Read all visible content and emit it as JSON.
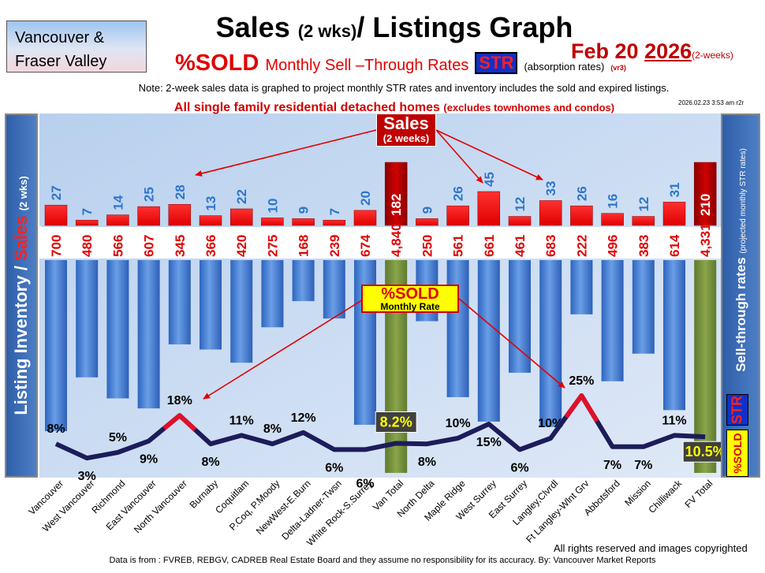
{
  "header": {
    "region_line1": "Vancouver &",
    "region_line2": "Fraser Valley",
    "title_main": "Sales",
    "title_small": "(2 wks)",
    "title_end": "/ Listings Graph",
    "date_main": "Feb 20",
    "date_year": "2026",
    "date_sub": "(2-weeks)",
    "sold_big": "%SOLD",
    "sold_desc": "Monthly Sell –Through Rates",
    "str_badge": "STR",
    "absorption": "(absorption rates)",
    "version": "(vr3)",
    "note": "Note: 2-week sales data is graphed to project monthly STR rates and inventory includes the sold and expired listings.",
    "timestamp": "2026.02.23 3:53 am r2r",
    "subtitle": "All single family residential detached homes",
    "subtitle_small": "(excludes townhomes and condos)"
  },
  "side": {
    "left_main": "Listing Inventory /",
    "left_red": "Sales",
    "left_small": "(2 wks)",
    "right_main": "Sell-through rates",
    "right_small": "(projected monthly STR rates)",
    "right_str": "STR",
    "right_sold": "%SOLD"
  },
  "callouts": {
    "sales_big": "Sales",
    "sales_small": "(2 weeks)",
    "sold_big": "%SOLD",
    "sold_small": "Monthly Rate"
  },
  "footer": {
    "copyright": "All rights reserved and  images copyrighted",
    "source": "Data is from : FVREB, REBGV, CADREB Real Estate Board and they assume no responsibility for its accuracy. By: Vancouver Market Reports"
  },
  "colors": {
    "sales_bar": "#ff0000",
    "sales_total_bar": "#b00000",
    "inventory_bar": "#4a86d8",
    "inventory_total_bar": "#76923c",
    "sales_label": "#2e75c9",
    "inventory_label": "#e00000",
    "rate_line": "#1c1c5a",
    "rate_highlight": "#e0102a"
  },
  "chart_data": {
    "type": "bar",
    "categories": [
      "Vancouver",
      "West Vancouver",
      "Richmond",
      "East Vancouver",
      "North Vancouver",
      "Burnaby",
      "Coquitlam",
      "P.Coq, P.Moody",
      "NewWest-E.Burn",
      "Delta-Ladner-Twsn",
      "White Rock-S.Surrey",
      "Van Total",
      "North Delta",
      "Maple Ridge",
      "West Surrey",
      "East Surrey",
      "Langley,Clvrdl",
      "Ft Langley-Wlnt Grv",
      "Abbotsford",
      "Mission",
      "Chilliwack",
      "FV Total"
    ],
    "is_total": [
      false,
      false,
      false,
      false,
      false,
      false,
      false,
      false,
      false,
      false,
      false,
      true,
      false,
      false,
      false,
      false,
      false,
      false,
      false,
      false,
      false,
      true
    ],
    "series": [
      {
        "values": [
          27,
          7,
          14,
          25,
          28,
          13,
          22,
          10,
          9,
          7,
          20,
          182,
          9,
          26,
          45,
          12,
          33,
          26,
          16,
          12,
          31,
          210
        ]
      },
      {
        "values": [
          700,
          480,
          566,
          607,
          345,
          366,
          420,
          275,
          168,
          239,
          674,
          4840,
          250,
          561,
          661,
          461,
          683,
          222,
          496,
          383,
          614,
          4331
        ]
      },
      {
        "values": [
          8,
          3,
          5,
          9,
          18,
          8,
          11,
          8,
          12,
          6,
          6,
          8.2,
          8,
          10,
          15,
          6,
          10,
          25,
          7,
          7,
          11,
          10.5
        ]
      }
    ],
    "value_labels_sales": [
      "27",
      "7",
      "14",
      "25",
      "28",
      "13",
      "22",
      "10",
      "9",
      "7",
      "20",
      "182",
      "9",
      "26",
      "45",
      "12",
      "33",
      "26",
      "16",
      "12",
      "31",
      "210"
    ],
    "value_labels_inventory": [
      "700",
      "480",
      "566",
      "607",
      "345",
      "366",
      "420",
      "275",
      "168",
      "239",
      "674",
      "4,840",
      "250",
      "561",
      "661",
      "461",
      "683",
      "222",
      "496",
      "383",
      "614",
      "4,331"
    ],
    "value_labels_rate": [
      "8%",
      "3%",
      "5%",
      "9%",
      "18%",
      "8%",
      "11%",
      "8%",
      "12%",
      "6%",
      "6%",
      "8.2%",
      "8%",
      "10%",
      "15%",
      "6%",
      "10%",
      "25%",
      "7%",
      "7%",
      "11%",
      "10.5%"
    ]
  }
}
